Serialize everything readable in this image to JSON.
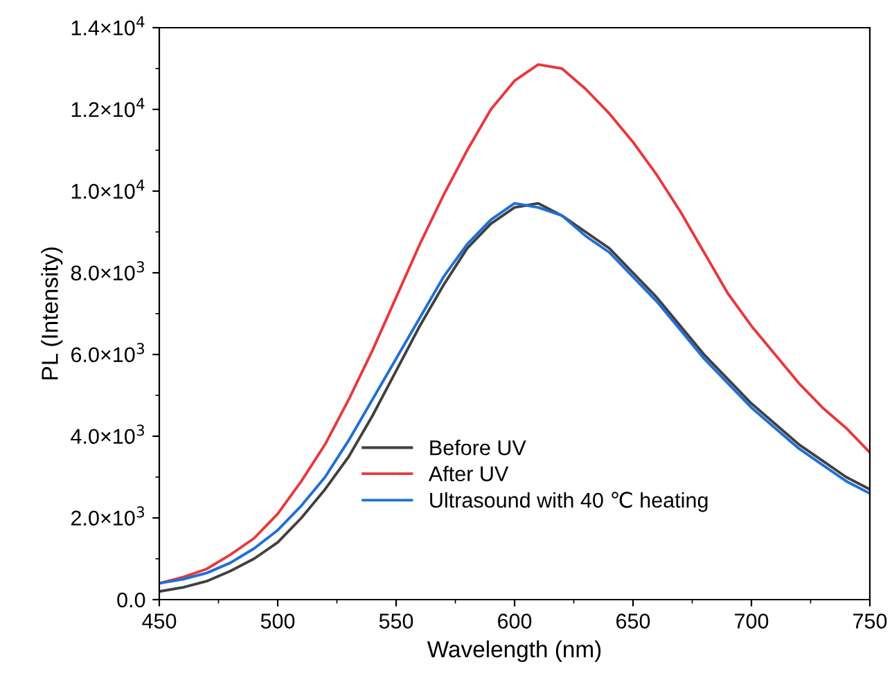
{
  "chart_data": {
    "type": "line",
    "xlabel": "Wavelength (nm)",
    "ylabel": "PL (Intensity)",
    "x": [
      450,
      460,
      470,
      480,
      490,
      500,
      510,
      520,
      530,
      540,
      550,
      560,
      570,
      580,
      590,
      600,
      610,
      620,
      630,
      640,
      650,
      660,
      670,
      680,
      690,
      700,
      710,
      720,
      730,
      740,
      750
    ],
    "series": [
      {
        "name": "Before UV",
        "color": "#404040",
        "values": [
          200,
          300,
          450,
          700,
          1000,
          1400,
          2000,
          2700,
          3500,
          4500,
          5600,
          6700,
          7700,
          8600,
          9200,
          9600,
          9700,
          9400,
          9000,
          8600,
          8000,
          7400,
          6700,
          6000,
          5400,
          4800,
          4300,
          3800,
          3400,
          3000,
          2700
        ]
      },
      {
        "name": "After UV",
        "color": "#e8383d",
        "values": [
          400,
          550,
          750,
          1100,
          1500,
          2100,
          2900,
          3800,
          4900,
          6100,
          7400,
          8700,
          9900,
          11000,
          12000,
          12700,
          13100,
          13000,
          12500,
          11900,
          11200,
          10400,
          9500,
          8500,
          7500,
          6700,
          6000,
          5300,
          4700,
          4200,
          3600
        ]
      },
      {
        "name": "Ultrasound with 40 ℃ heating",
        "color": "#1f6fd6",
        "values": [
          400,
          500,
          650,
          900,
          1250,
          1700,
          2300,
          3000,
          3900,
          4900,
          5900,
          6900,
          7900,
          8700,
          9300,
          9700,
          9600,
          9400,
          8900,
          8500,
          7900,
          7300,
          6600,
          5900,
          5300,
          4700,
          4200,
          3700,
          3300,
          2900,
          2600
        ]
      }
    ],
    "xlim": [
      450,
      750
    ],
    "xticks": [
      450,
      500,
      550,
      600,
      650,
      700,
      750
    ],
    "ylim": [
      0,
      14000
    ],
    "yticks": [
      {
        "value": 0,
        "label": "0.0"
      },
      {
        "value": 2000,
        "label": "2.0×10$^{3}$"
      },
      {
        "value": 4000,
        "label": "4.0×10$^{3}$"
      },
      {
        "value": 6000,
        "label": "6.0×10$^{3}$"
      },
      {
        "value": 8000,
        "label": "8.0×10$^{3}$"
      },
      {
        "value": 10000,
        "label": "1.0×10$^{4}$"
      },
      {
        "value": 12000,
        "label": "1.2×10$^{4}$"
      },
      {
        "value": 14000,
        "label": "1.4×10$^{4}$"
      }
    ],
    "legend": "bottom",
    "grid": false,
    "marker": "none",
    "line_style": "solid"
  }
}
